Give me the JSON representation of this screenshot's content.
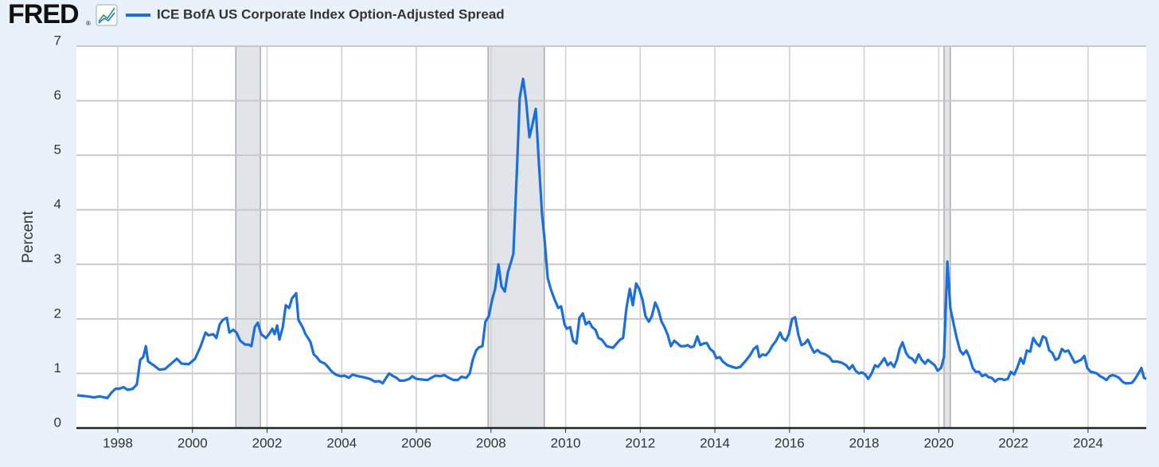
{
  "brand": "FRED",
  "brand_mark": "®",
  "chart_data": {
    "type": "line",
    "ylabel": "Percent",
    "series": [
      {
        "name": "ICE BofA US Corporate Index Option-Adjusted Spread",
        "color": "#1c6fd9",
        "values": [
          0.6,
          0.58,
          0.56,
          0.58,
          0.55,
          0.65,
          0.72,
          0.72,
          0.75,
          0.7,
          0.72,
          0.8,
          1.25,
          1.3,
          1.5,
          1.22,
          1.15,
          1.07,
          1.08,
          1.18,
          1.27,
          1.18,
          1.17,
          1.27,
          1.5,
          1.75,
          1.7,
          1.72,
          1.65,
          1.9,
          1.98,
          2.02,
          1.75,
          1.8,
          1.75,
          1.6,
          1.53,
          1.53,
          1.5,
          1.85,
          1.93,
          1.72,
          1.65,
          1.72,
          1.82,
          1.72,
          1.88,
          1.62,
          1.85,
          2.25,
          2.2,
          2.38,
          2.47,
          1.98,
          1.85,
          1.72,
          1.58,
          1.35,
          1.3,
          1.22,
          1.18,
          1.12,
          1.03,
          0.98,
          0.95,
          0.96,
          0.92,
          0.98,
          0.95,
          0.93,
          0.9,
          0.85,
          0.86,
          0.82,
          0.92,
          1.0,
          0.95,
          0.92,
          0.87,
          0.87,
          0.9,
          0.95,
          0.9,
          0.89,
          0.88,
          0.92,
          0.96,
          0.95,
          0.97,
          0.92,
          0.88,
          0.88,
          0.94,
          0.92,
          1.0,
          1.25,
          1.42,
          1.48,
          1.5,
          1.95,
          2.05,
          2.35,
          2.55,
          3.0,
          2.6,
          2.5,
          2.85,
          3.05,
          3.2,
          4.65,
          6.05,
          6.4,
          6.0,
          5.33,
          5.5,
          5.85,
          4.9,
          3.9,
          3.5,
          2.75,
          2.55,
          2.38,
          2.2,
          2.23,
          1.9,
          1.82,
          1.85,
          1.6,
          1.55,
          2.02,
          2.1,
          1.9,
          1.95,
          1.85,
          1.8,
          1.65,
          1.62,
          1.5,
          1.47,
          1.55,
          1.62,
          1.65,
          2.2,
          2.55,
          2.25,
          2.65,
          2.55,
          2.35,
          2.05,
          1.95,
          2.05,
          2.3,
          2.18,
          1.95,
          1.85,
          1.7,
          1.5,
          1.6,
          1.55,
          1.5,
          1.5,
          1.52,
          1.48,
          1.5,
          1.68,
          1.52,
          1.55,
          1.56,
          1.45,
          1.4,
          1.28,
          1.3,
          1.22,
          1.15,
          1.12,
          1.1,
          1.12,
          1.22,
          1.33,
          1.45,
          1.5,
          1.3,
          1.35,
          1.33,
          1.4,
          1.5,
          1.6,
          1.75,
          1.65,
          1.6,
          1.72,
          2.0,
          2.03,
          1.7,
          1.52,
          1.55,
          1.62,
          1.48,
          1.38,
          1.43,
          1.38,
          1.35,
          1.3,
          1.22,
          1.22,
          1.2,
          1.15,
          1.08,
          1.15,
          1.05,
          1.0,
          1.02,
          0.98,
          0.9,
          1.0,
          1.15,
          1.12,
          1.2,
          1.28,
          1.15,
          1.2,
          1.12,
          1.25,
          1.45,
          1.57,
          1.38,
          1.3,
          1.27,
          1.2,
          1.35,
          1.25,
          1.18,
          1.25,
          1.2,
          1.15,
          1.05,
          1.1,
          1.3,
          3.05,
          2.2,
          1.9,
          1.65,
          1.42,
          1.35,
          1.42,
          1.3,
          1.1,
          1.03,
          1.03,
          0.95,
          0.98,
          0.93,
          0.92,
          0.85,
          0.9,
          0.9,
          0.88,
          0.9,
          1.03,
          0.98,
          1.1,
          1.28,
          1.18,
          1.42,
          1.4,
          1.65,
          1.55,
          1.5,
          1.68,
          1.65,
          1.42,
          1.38,
          1.25,
          1.28,
          1.45,
          1.4,
          1.42,
          1.32,
          1.2,
          1.22,
          1.25,
          1.32,
          1.1,
          1.03,
          1.02,
          1.0,
          0.95,
          0.92,
          0.88,
          0.95,
          0.97,
          0.95,
          0.92,
          0.85,
          0.82,
          0.82,
          0.83,
          0.9,
          1.0,
          1.1,
          0.92,
          0.9
        ]
      }
    ],
    "x": [
      1996.91,
      1997.19,
      1997.36,
      1997.51,
      1997.72,
      1997.83,
      1997.94,
      1998.04,
      1998.15,
      1998.26,
      1998.4,
      1998.51,
      1998.6,
      1998.68,
      1998.75,
      1998.81,
      1998.96,
      1999.11,
      1999.26,
      1999.43,
      1999.58,
      1999.71,
      1999.9,
      2000.07,
      2000.22,
      2000.35,
      2000.43,
      2000.56,
      2000.64,
      2000.73,
      2000.81,
      2000.92,
      2000.99,
      2001.09,
      2001.18,
      2001.28,
      2001.41,
      2001.5,
      2001.58,
      2001.67,
      2001.75,
      2001.84,
      2001.97,
      2002.05,
      2002.14,
      2002.2,
      2002.27,
      2002.33,
      2002.42,
      2002.5,
      2002.59,
      2002.67,
      2002.78,
      2002.84,
      2002.95,
      2003.03,
      2003.16,
      2003.25,
      2003.33,
      2003.42,
      2003.55,
      2003.63,
      2003.74,
      2003.84,
      2003.97,
      2004.08,
      2004.19,
      2004.29,
      2004.44,
      2004.59,
      2004.76,
      2004.89,
      2005.0,
      2005.1,
      2005.19,
      2005.27,
      2005.38,
      2005.47,
      2005.55,
      2005.68,
      2005.81,
      2005.89,
      2006.0,
      2006.15,
      2006.3,
      2006.4,
      2006.51,
      2006.64,
      2006.75,
      2006.87,
      2007.0,
      2007.11,
      2007.21,
      2007.34,
      2007.43,
      2007.51,
      2007.6,
      2007.68,
      2007.77,
      2007.85,
      2007.94,
      2008.03,
      2008.11,
      2008.2,
      2008.28,
      2008.37,
      2008.45,
      2008.54,
      2008.6,
      2008.69,
      2008.77,
      2008.86,
      2008.94,
      2009.03,
      2009.09,
      2009.2,
      2009.28,
      2009.37,
      2009.43,
      2009.52,
      2009.6,
      2009.69,
      2009.8,
      2009.88,
      2009.97,
      2010.03,
      2010.12,
      2010.2,
      2010.29,
      2010.37,
      2010.46,
      2010.54,
      2010.63,
      2010.71,
      2010.8,
      2010.88,
      2010.97,
      2011.1,
      2011.27,
      2011.37,
      2011.46,
      2011.54,
      2011.63,
      2011.72,
      2011.8,
      2011.89,
      2011.97,
      2012.06,
      2012.14,
      2012.23,
      2012.31,
      2012.4,
      2012.48,
      2012.57,
      2012.65,
      2012.74,
      2012.82,
      2012.91,
      2013.0,
      2013.08,
      2013.19,
      2013.27,
      2013.36,
      2013.44,
      2013.53,
      2013.61,
      2013.7,
      2013.78,
      2013.87,
      2013.96,
      2014.04,
      2014.13,
      2014.21,
      2014.34,
      2014.47,
      2014.57,
      2014.68,
      2014.81,
      2014.94,
      2015.04,
      2015.13,
      2015.19,
      2015.28,
      2015.36,
      2015.45,
      2015.53,
      2015.64,
      2015.75,
      2015.81,
      2015.9,
      2015.98,
      2016.07,
      2016.15,
      2016.24,
      2016.32,
      2016.41,
      2016.49,
      2016.58,
      2016.66,
      2016.75,
      2016.83,
      2016.96,
      2017.07,
      2017.15,
      2017.26,
      2017.39,
      2017.52,
      2017.6,
      2017.69,
      2017.77,
      2017.86,
      2017.94,
      2018.03,
      2018.11,
      2018.2,
      2018.29,
      2018.37,
      2018.46,
      2018.54,
      2018.63,
      2018.71,
      2018.8,
      2018.88,
      2018.95,
      2019.03,
      2019.12,
      2019.2,
      2019.29,
      2019.37,
      2019.46,
      2019.54,
      2019.63,
      2019.71,
      2019.8,
      2019.89,
      2019.97,
      2020.06,
      2020.14,
      2020.23,
      2020.31,
      2020.4,
      2020.48,
      2020.57,
      2020.65,
      2020.74,
      2020.82,
      2020.91,
      2020.99,
      2021.08,
      2021.16,
      2021.25,
      2021.34,
      2021.42,
      2021.51,
      2021.59,
      2021.68,
      2021.76,
      2021.85,
      2021.93,
      2022.02,
      2022.1,
      2022.19,
      2022.27,
      2022.36,
      2022.45,
      2022.53,
      2022.62,
      2022.7,
      2022.79,
      2022.87,
      2022.96,
      2023.04,
      2023.13,
      2023.21,
      2023.3,
      2023.38,
      2023.47,
      2023.55,
      2023.64,
      2023.72,
      2023.81,
      2023.9,
      2023.98,
      2024.07,
      2024.15,
      2024.24,
      2024.32,
      2024.41,
      2024.49,
      2024.58,
      2024.66,
      2024.75,
      2024.83,
      2024.92,
      2025.0,
      2025.09,
      2025.18,
      2025.26,
      2025.35,
      2025.43,
      2025.5,
      2025.56
    ],
    "xlim": [
      1996.89,
      2025.56
    ],
    "xticks": [
      1998,
      2000,
      2002,
      2004,
      2006,
      2008,
      2010,
      2012,
      2014,
      2016,
      2018,
      2020,
      2022,
      2024
    ],
    "ylim": [
      0,
      7
    ],
    "yticks": [
      0,
      1,
      2,
      3,
      4,
      5,
      6,
      7
    ],
    "grid": true,
    "recession_color": "#e1e5ea",
    "recessions": [
      [
        2001.16,
        2001.82
      ],
      [
        2007.92,
        2009.43
      ],
      [
        2020.14,
        2020.31
      ]
    ]
  }
}
